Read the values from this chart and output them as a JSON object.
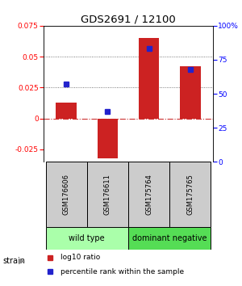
{
  "title": "GDS2691 / 12100",
  "samples": [
    "GSM176606",
    "GSM176611",
    "GSM175764",
    "GSM175765"
  ],
  "log10_ratio": [
    0.013,
    -0.032,
    0.065,
    0.042
  ],
  "percentile_rank_pct": [
    57,
    37,
    83,
    68
  ],
  "groups": [
    {
      "label": "wild type",
      "samples": [
        0,
        1
      ],
      "color": "#aaffaa"
    },
    {
      "label": "dominant negative",
      "samples": [
        2,
        3
      ],
      "color": "#55dd55"
    }
  ],
  "ylim_left": [
    -0.035,
    0.075
  ],
  "ylim_right": [
    0,
    100
  ],
  "yticks_left": [
    -0.025,
    0,
    0.025,
    0.05,
    0.075
  ],
  "yticks_right": [
    0,
    25,
    50,
    75,
    100
  ],
  "ytick_labels_left": [
    "-0.025",
    "0",
    "0.025",
    "0.05",
    "0.075"
  ],
  "ytick_labels_right": [
    "0",
    "25",
    "50",
    "75",
    "100%"
  ],
  "bar_color": "#cc2222",
  "dot_color": "#2222cc",
  "bar_width": 0.5,
  "zero_line_color": "#cc3333",
  "dotted_line_color": "#555555",
  "sample_box_color": "#cccccc",
  "strain_label": "strain",
  "legend_bar_label": "log10 ratio",
  "legend_dot_label": "percentile rank within the sample"
}
